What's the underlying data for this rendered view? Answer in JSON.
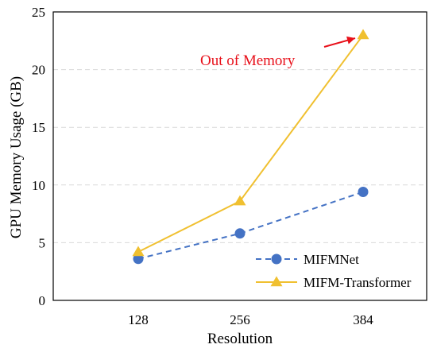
{
  "chart_data": {
    "type": "line",
    "title": "",
    "xlabel": "Resolution",
    "ylabel": "GPU Memory Usage (GB)",
    "categories": [
      "128",
      "256",
      "384"
    ],
    "ylim": [
      0,
      25
    ],
    "yticks": [
      0,
      5,
      10,
      15,
      20,
      25
    ],
    "grid": "horizontal dashed",
    "legend_position": "bottom-right",
    "series": [
      {
        "name": "MIFMNet",
        "values": [
          3.6,
          5.8,
          9.4
        ],
        "color": "#4472C4",
        "line_style": "dashed",
        "marker": "circle"
      },
      {
        "name": "MIFM-Transformer",
        "values": [
          4.2,
          8.6,
          23.0
        ],
        "color": "#F0C030",
        "line_style": "solid",
        "marker": "triangle"
      }
    ],
    "annotation": {
      "text": "Out of Memory",
      "color": "#E8101A",
      "points_to": {
        "series": "MIFM-Transformer",
        "category": "384"
      }
    }
  }
}
